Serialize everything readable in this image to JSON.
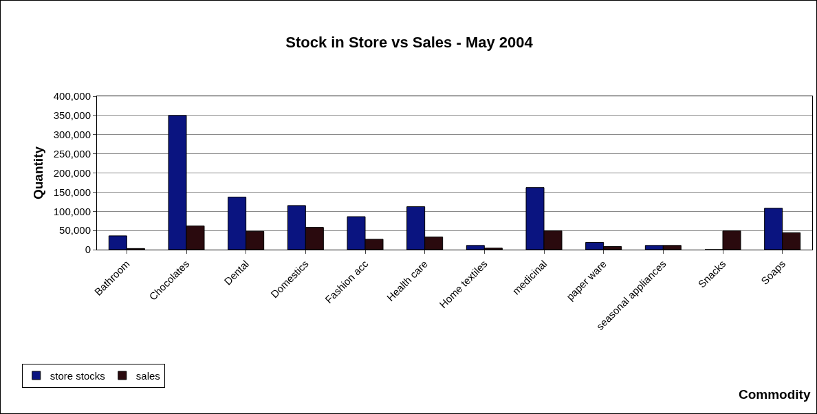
{
  "chart_data": {
    "type": "bar",
    "title": "Stock in Store vs Sales - May 2004",
    "xlabel": "Commodity",
    "ylabel": "Quantity",
    "categories": [
      "Bathroom",
      "Chocolates",
      "Dental",
      "Domestics",
      "Fashion acc",
      "Health care",
      "Home textiles",
      "medicinal",
      "paper ware",
      "seasonal appliances",
      "Snacks",
      "Soaps"
    ],
    "series": [
      {
        "name": "store stocks",
        "color": "#0a1480",
        "values": [
          36000,
          350000,
          137000,
          115000,
          86000,
          112000,
          11000,
          162000,
          19000,
          11000,
          0,
          108000
        ]
      },
      {
        "name": "sales",
        "color": "#2a0a0e",
        "values": [
          3000,
          62000,
          48000,
          58000,
          27000,
          33000,
          4000,
          49000,
          8000,
          11000,
          49000,
          44000
        ]
      }
    ],
    "ylim": [
      0,
      400000
    ],
    "yticks": [
      {
        "value": 0,
        "label": "0"
      },
      {
        "value": 50000,
        "label": "50,000"
      },
      {
        "value": 100000,
        "label": "100,000"
      },
      {
        "value": 150000,
        "label": "150,000"
      },
      {
        "value": 200000,
        "label": "200,000"
      },
      {
        "value": 250000,
        "label": "250,000"
      },
      {
        "value": 300000,
        "label": "300,000"
      },
      {
        "value": 350000,
        "label": "350,000"
      },
      {
        "value": 400000,
        "label": "400,000"
      }
    ],
    "grid": "y",
    "legend": "bottom left"
  }
}
